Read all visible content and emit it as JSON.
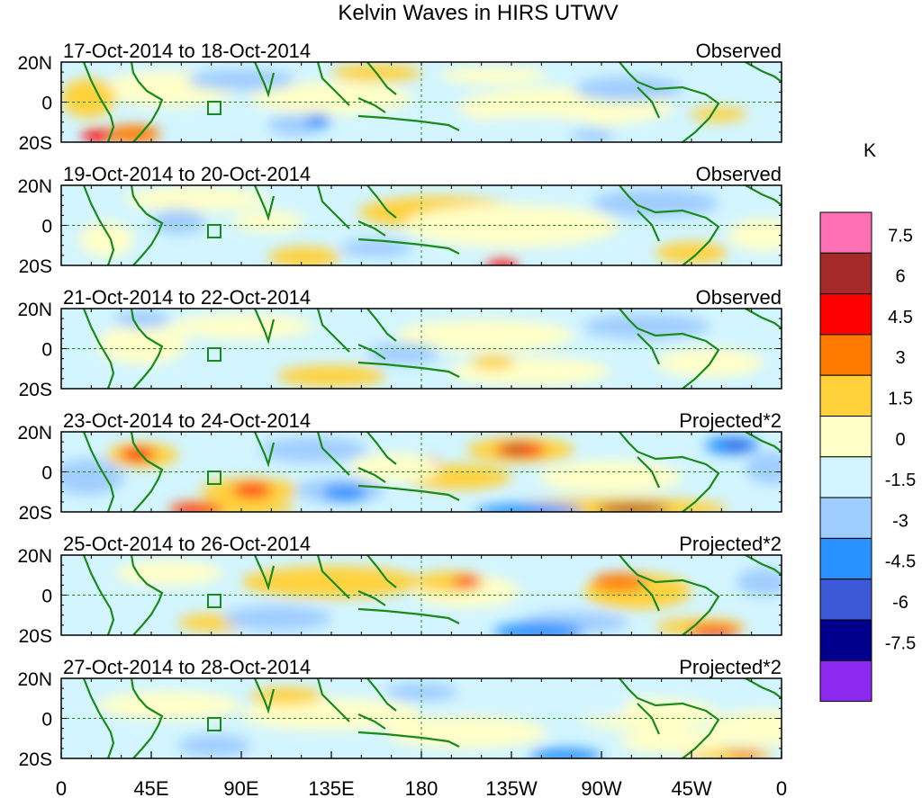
{
  "title": "Kelvin Waves in HIRS UTWV",
  "panels": [
    {
      "date_range": "17-Oct-2014 to 18-Oct-2014",
      "label": "Observed"
    },
    {
      "date_range": "19-Oct-2014 to 20-Oct-2014",
      "label": "Observed"
    },
    {
      "date_range": "21-Oct-2014 to 22-Oct-2014",
      "label": "Observed"
    },
    {
      "date_range": "23-Oct-2014 to 24-Oct-2014",
      "label": "Projected*2"
    },
    {
      "date_range": "25-Oct-2014 to 26-Oct-2014",
      "label": "Projected*2"
    },
    {
      "date_range": "27-Oct-2014 to 28-Oct-2014",
      "label": "Projected*2"
    }
  ],
  "lat_labels": [
    "20N",
    "0",
    "20S"
  ],
  "lon_labels": [
    "0",
    "45E",
    "90E",
    "135E",
    "180",
    "135W",
    "90W",
    "45W",
    "0"
  ],
  "colorbar": {
    "unit": "K",
    "tick_labels": [
      "7.5",
      "6",
      "4.5",
      "3",
      "1.5",
      "0",
      "-1.5",
      "-3",
      "-4.5",
      "-6",
      "-7.5"
    ],
    "colors": [
      "#ff6fb4",
      "#a52a2a",
      "#ff0000",
      "#ff7b00",
      "#ffd23c",
      "#ffffc8",
      "#d2f5ff",
      "#a0cdff",
      "#2891ff",
      "#3c5ad7",
      "#00008c",
      "#8c28f0"
    ]
  }
}
